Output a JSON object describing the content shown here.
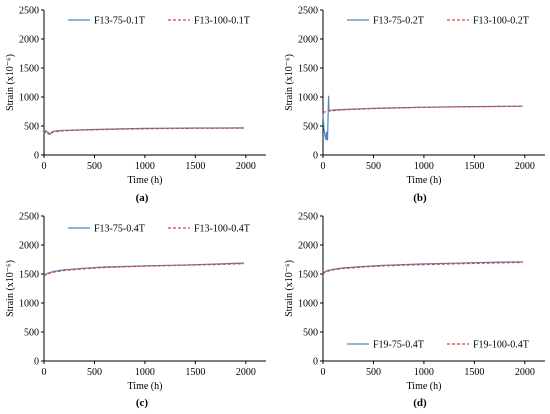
{
  "chart_data": [
    {
      "type": "line",
      "caption": "(a)",
      "xlabel": "Time (h)",
      "ylabel": "Strain (x10⁻⁶)",
      "xlim": [
        0,
        2200
      ],
      "ylim": [
        0,
        2500
      ],
      "xticks": [
        "0",
        "500",
        "1000",
        "1500",
        "2000"
      ],
      "yticks": [
        "0",
        "500",
        "1000",
        "1500",
        "2000",
        "2500"
      ],
      "legend_position": "top",
      "series": [
        {
          "name": "F13-75-0.1T",
          "color": "#4a86c5",
          "style": "solid",
          "points": [
            [
              0,
              380
            ],
            [
              20,
              420
            ],
            [
              40,
              390
            ],
            [
              60,
              360
            ],
            [
              80,
              400
            ],
            [
              100,
              410
            ],
            [
              150,
              420
            ],
            [
              200,
              425
            ],
            [
              300,
              430
            ],
            [
              500,
              440
            ],
            [
              750,
              450
            ],
            [
              1000,
              458
            ],
            [
              1250,
              462
            ],
            [
              1500,
              465
            ],
            [
              1750,
              466
            ],
            [
              1980,
              468
            ]
          ]
        },
        {
          "name": "F13-100-0.1T",
          "color": "#e03c3c",
          "style": "dashed",
          "points": [
            [
              0,
              360
            ],
            [
              20,
              400
            ],
            [
              40,
              370
            ],
            [
              60,
              350
            ],
            [
              80,
              390
            ],
            [
              100,
              400
            ],
            [
              150,
              410
            ],
            [
              200,
              418
            ],
            [
              300,
              425
            ],
            [
              500,
              435
            ],
            [
              750,
              445
            ],
            [
              1000,
              452
            ],
            [
              1250,
              457
            ],
            [
              1500,
              460
            ],
            [
              1750,
              462
            ],
            [
              1980,
              464
            ]
          ]
        }
      ]
    },
    {
      "type": "line",
      "caption": "(b)",
      "xlabel": "Time (h)",
      "ylabel": "Strain (x10⁻⁶)",
      "xlim": [
        0,
        2200
      ],
      "ylim": [
        0,
        2500
      ],
      "xticks": [
        "0",
        "500",
        "1000",
        "1500",
        "2000"
      ],
      "yticks": [
        "0",
        "500",
        "1000",
        "1500",
        "2000",
        "2500"
      ],
      "legend_position": "top",
      "series": [
        {
          "name": "F13-75-0.2T",
          "color": "#4a86c5",
          "style": "solid",
          "points": [
            [
              0,
              700
            ],
            [
              10,
              450
            ],
            [
              20,
              330
            ],
            [
              30,
              260
            ],
            [
              35,
              400
            ],
            [
              40,
              300
            ],
            [
              45,
              250
            ],
            [
              50,
              600
            ],
            [
              55,
              1020
            ],
            [
              58,
              760
            ],
            [
              70,
              770
            ],
            [
              100,
              775
            ],
            [
              200,
              785
            ],
            [
              500,
              805
            ],
            [
              1000,
              825
            ],
            [
              1500,
              835
            ],
            [
              1980,
              842
            ]
          ]
        },
        {
          "name": "F13-100-0.2T",
          "color": "#e03c3c",
          "style": "dashed",
          "points": [
            [
              0,
              730
            ],
            [
              20,
              745
            ],
            [
              50,
              755
            ],
            [
              100,
              765
            ],
            [
              200,
              780
            ],
            [
              500,
              800
            ],
            [
              1000,
              822
            ],
            [
              1500,
              833
            ],
            [
              1980,
              840
            ]
          ]
        }
      ]
    },
    {
      "type": "line",
      "caption": "(c)",
      "xlabel": "Time (h)",
      "ylabel": "Strain (x10⁻⁶)",
      "xlim": [
        0,
        2200
      ],
      "ylim": [
        0,
        2500
      ],
      "xticks": [
        "0",
        "500",
        "1000",
        "1500",
        "2000"
      ],
      "yticks": [
        "0",
        "500",
        "1000",
        "1500",
        "2000",
        "2500"
      ],
      "legend_position": "top",
      "series": [
        {
          "name": "F13-75-0.4T",
          "color": "#4a86c5",
          "style": "solid",
          "points": [
            [
              0,
              1470
            ],
            [
              20,
              1500
            ],
            [
              50,
              1520
            ],
            [
              100,
              1545
            ],
            [
              200,
              1570
            ],
            [
              400,
              1600
            ],
            [
              600,
              1620
            ],
            [
              800,
              1630
            ],
            [
              1000,
              1640
            ],
            [
              1250,
              1650
            ],
            [
              1500,
              1660
            ],
            [
              1750,
              1675
            ],
            [
              1980,
              1690
            ]
          ]
        },
        {
          "name": "F13-100-0.4T",
          "color": "#e03c3c",
          "style": "dashed",
          "points": [
            [
              0,
              1460
            ],
            [
              20,
              1490
            ],
            [
              50,
              1510
            ],
            [
              100,
              1535
            ],
            [
              200,
              1560
            ],
            [
              400,
              1590
            ],
            [
              600,
              1612
            ],
            [
              800,
              1625
            ],
            [
              1000,
              1635
            ],
            [
              1250,
              1645
            ],
            [
              1500,
              1655
            ],
            [
              1750,
              1665
            ],
            [
              1980,
              1678
            ]
          ]
        }
      ]
    },
    {
      "type": "line",
      "caption": "(d)",
      "xlabel": "Time (h)",
      "ylabel": "Strain (x10⁻⁶)",
      "xlim": [
        0,
        2200
      ],
      "ylim": [
        0,
        2500
      ],
      "xticks": [
        "0",
        "500",
        "1000",
        "1500",
        "2000"
      ],
      "yticks": [
        "0",
        "500",
        "1000",
        "1500",
        "2000",
        "2500"
      ],
      "legend_position": "bottom",
      "series": [
        {
          "name": "F19-75-0.4T",
          "color": "#4a86c5",
          "style": "solid",
          "points": [
            [
              0,
              1510
            ],
            [
              20,
              1540
            ],
            [
              50,
              1560
            ],
            [
              100,
              1580
            ],
            [
              200,
              1605
            ],
            [
              400,
              1630
            ],
            [
              600,
              1650
            ],
            [
              800,
              1662
            ],
            [
              1000,
              1675
            ],
            [
              1250,
              1685
            ],
            [
              1500,
              1695
            ],
            [
              1750,
              1705
            ],
            [
              1980,
              1710
            ]
          ]
        },
        {
          "name": "F19-100-0.4T",
          "color": "#e03c3c",
          "style": "dashed",
          "points": [
            [
              0,
              1500
            ],
            [
              20,
              1530
            ],
            [
              50,
              1550
            ],
            [
              100,
              1570
            ],
            [
              200,
              1595
            ],
            [
              400,
              1620
            ],
            [
              600,
              1640
            ],
            [
              800,
              1652
            ],
            [
              1000,
              1662
            ],
            [
              1250,
              1672
            ],
            [
              1500,
              1682
            ],
            [
              1750,
              1692
            ],
            [
              1980,
              1700
            ]
          ]
        }
      ]
    }
  ]
}
